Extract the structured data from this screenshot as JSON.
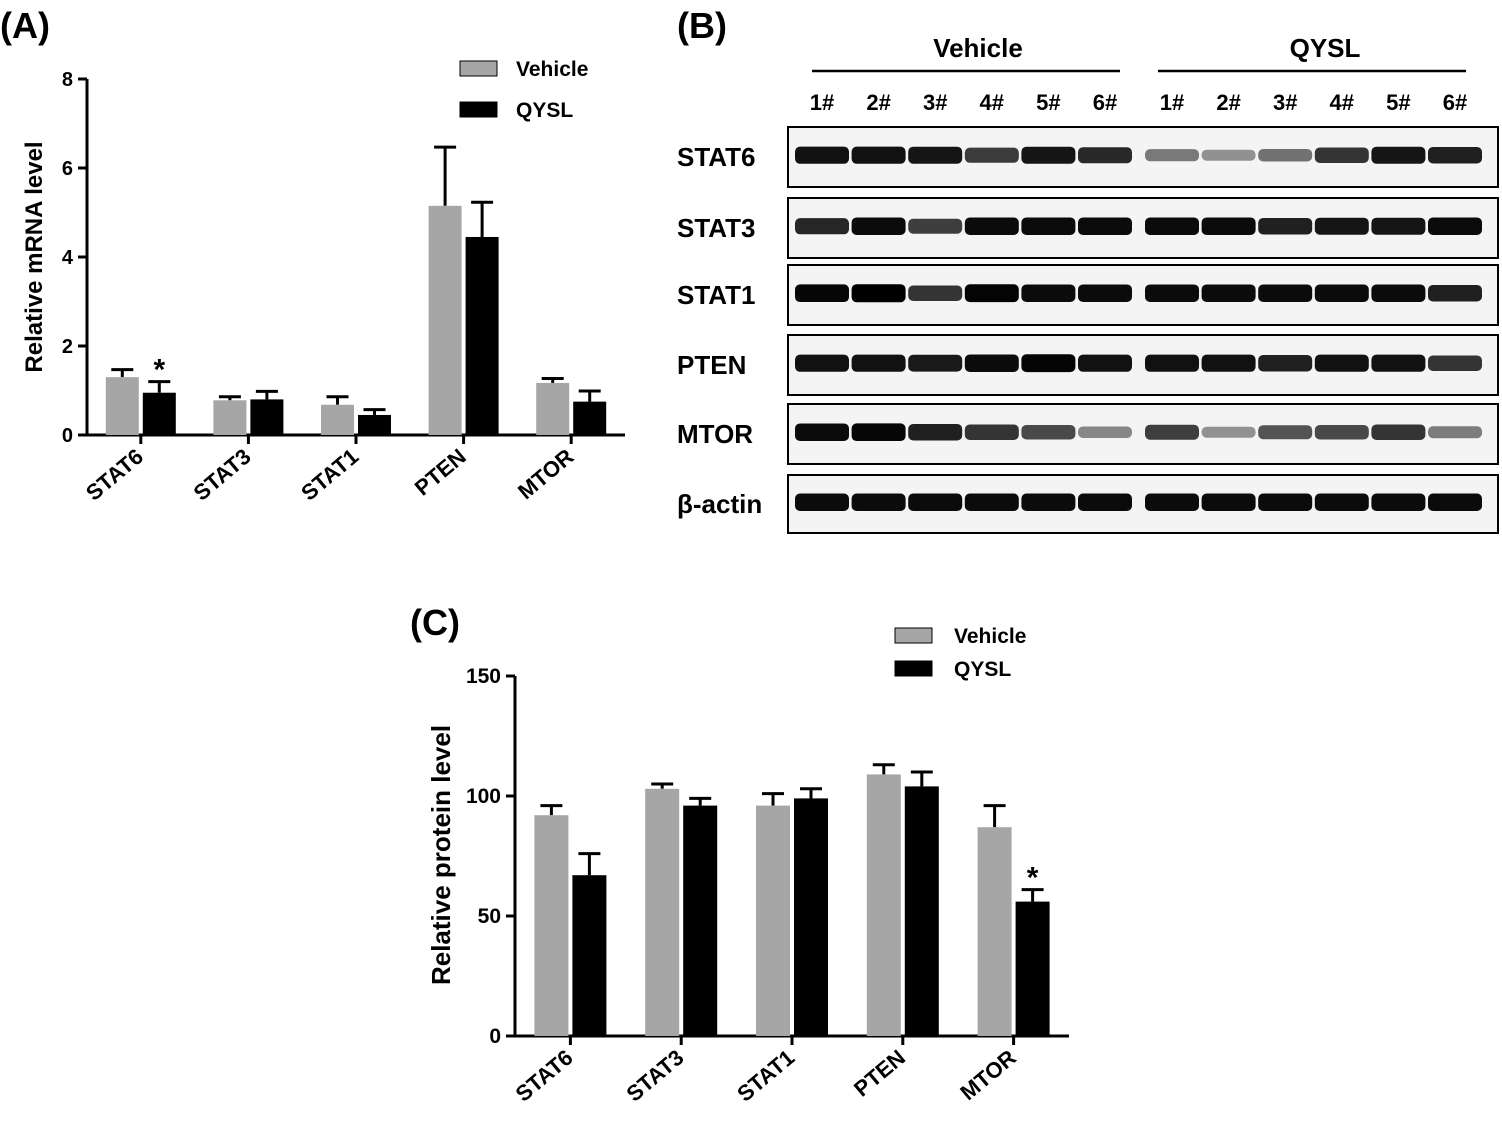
{
  "colors": {
    "vehicle": "#a6a6a6",
    "qysl": "#000000",
    "axis": "#000000",
    "blot_bg": "#f4f4f4"
  },
  "chart_data": [
    {
      "id": "A",
      "panel_label": "(A)",
      "type": "bar",
      "title": "",
      "xlabel": "",
      "ylabel": "Relative mRNA level",
      "ylim": [
        0,
        8
      ],
      "yticks": [
        "0",
        "2",
        "4",
        "6",
        "8"
      ],
      "categories": [
        "STAT6",
        "STAT3",
        "STAT1",
        "PTEN",
        "MTOR"
      ],
      "series": [
        {
          "name": "Vehicle",
          "values": [
            1.3,
            0.78,
            0.68,
            5.15,
            1.17
          ],
          "errors": [
            0.17,
            0.08,
            0.18,
            1.32,
            0.1
          ]
        },
        {
          "name": "QYSL",
          "values": [
            0.95,
            0.8,
            0.45,
            4.45,
            0.75
          ],
          "errors": [
            0.25,
            0.18,
            0.12,
            0.78,
            0.24
          ]
        }
      ],
      "annotations": [
        {
          "text": "*",
          "category": "STAT6",
          "series": "QYSL"
        }
      ],
      "legend": "top-right"
    },
    {
      "id": "C",
      "panel_label": "(C)",
      "type": "bar",
      "title": "",
      "xlabel": "",
      "ylabel": "Relative protein level",
      "ylim": [
        0,
        150
      ],
      "yticks": [
        "0",
        "50",
        "100",
        "150"
      ],
      "categories": [
        "STAT6",
        "STAT3",
        "STAT1",
        "PTEN",
        "MTOR"
      ],
      "series": [
        {
          "name": "Vehicle",
          "values": [
            92,
            103,
            96,
            109,
            87
          ],
          "errors": [
            4,
            2,
            5,
            4,
            9
          ]
        },
        {
          "name": "QYSL",
          "values": [
            67,
            96,
            99,
            104,
            56
          ],
          "errors": [
            9,
            3,
            4,
            6,
            5
          ]
        }
      ],
      "annotations": [
        {
          "text": "*",
          "category": "MTOR",
          "series": "QYSL"
        }
      ],
      "legend": "top-right"
    }
  ],
  "blot": {
    "panel_label": "(B)",
    "groups": [
      "Vehicle",
      "QYSL"
    ],
    "lanes": [
      "1#",
      "2#",
      "3#",
      "4#",
      "5#",
      "6#",
      "1#",
      "2#",
      "3#",
      "4#",
      "5#",
      "6#"
    ],
    "rows": [
      {
        "name": "STAT6",
        "intensity": [
          0.92,
          0.92,
          0.9,
          0.72,
          0.9,
          0.8,
          0.42,
          0.3,
          0.45,
          0.75,
          0.9,
          0.85
        ]
      },
      {
        "name": "STAT3",
        "intensity": [
          0.82,
          0.95,
          0.7,
          0.95,
          0.95,
          0.95,
          0.95,
          0.95,
          0.85,
          0.9,
          0.9,
          0.95
        ]
      },
      {
        "name": "STAT1",
        "intensity": [
          0.97,
          1.0,
          0.75,
          0.98,
          0.95,
          0.95,
          0.95,
          0.95,
          0.95,
          0.95,
          0.95,
          0.85
        ]
      },
      {
        "name": "PTEN",
        "intensity": [
          0.92,
          0.92,
          0.88,
          0.95,
          0.98,
          0.92,
          0.92,
          0.92,
          0.85,
          0.92,
          0.92,
          0.75
        ]
      },
      {
        "name": "MTOR",
        "intensity": [
          0.95,
          0.97,
          0.85,
          0.75,
          0.65,
          0.35,
          0.7,
          0.3,
          0.6,
          0.65,
          0.75,
          0.4
        ]
      },
      {
        "name": "β-actin",
        "intensity": [
          0.95,
          0.95,
          0.95,
          0.95,
          0.95,
          0.95,
          0.95,
          0.95,
          0.95,
          0.95,
          0.95,
          0.95
        ]
      }
    ]
  }
}
